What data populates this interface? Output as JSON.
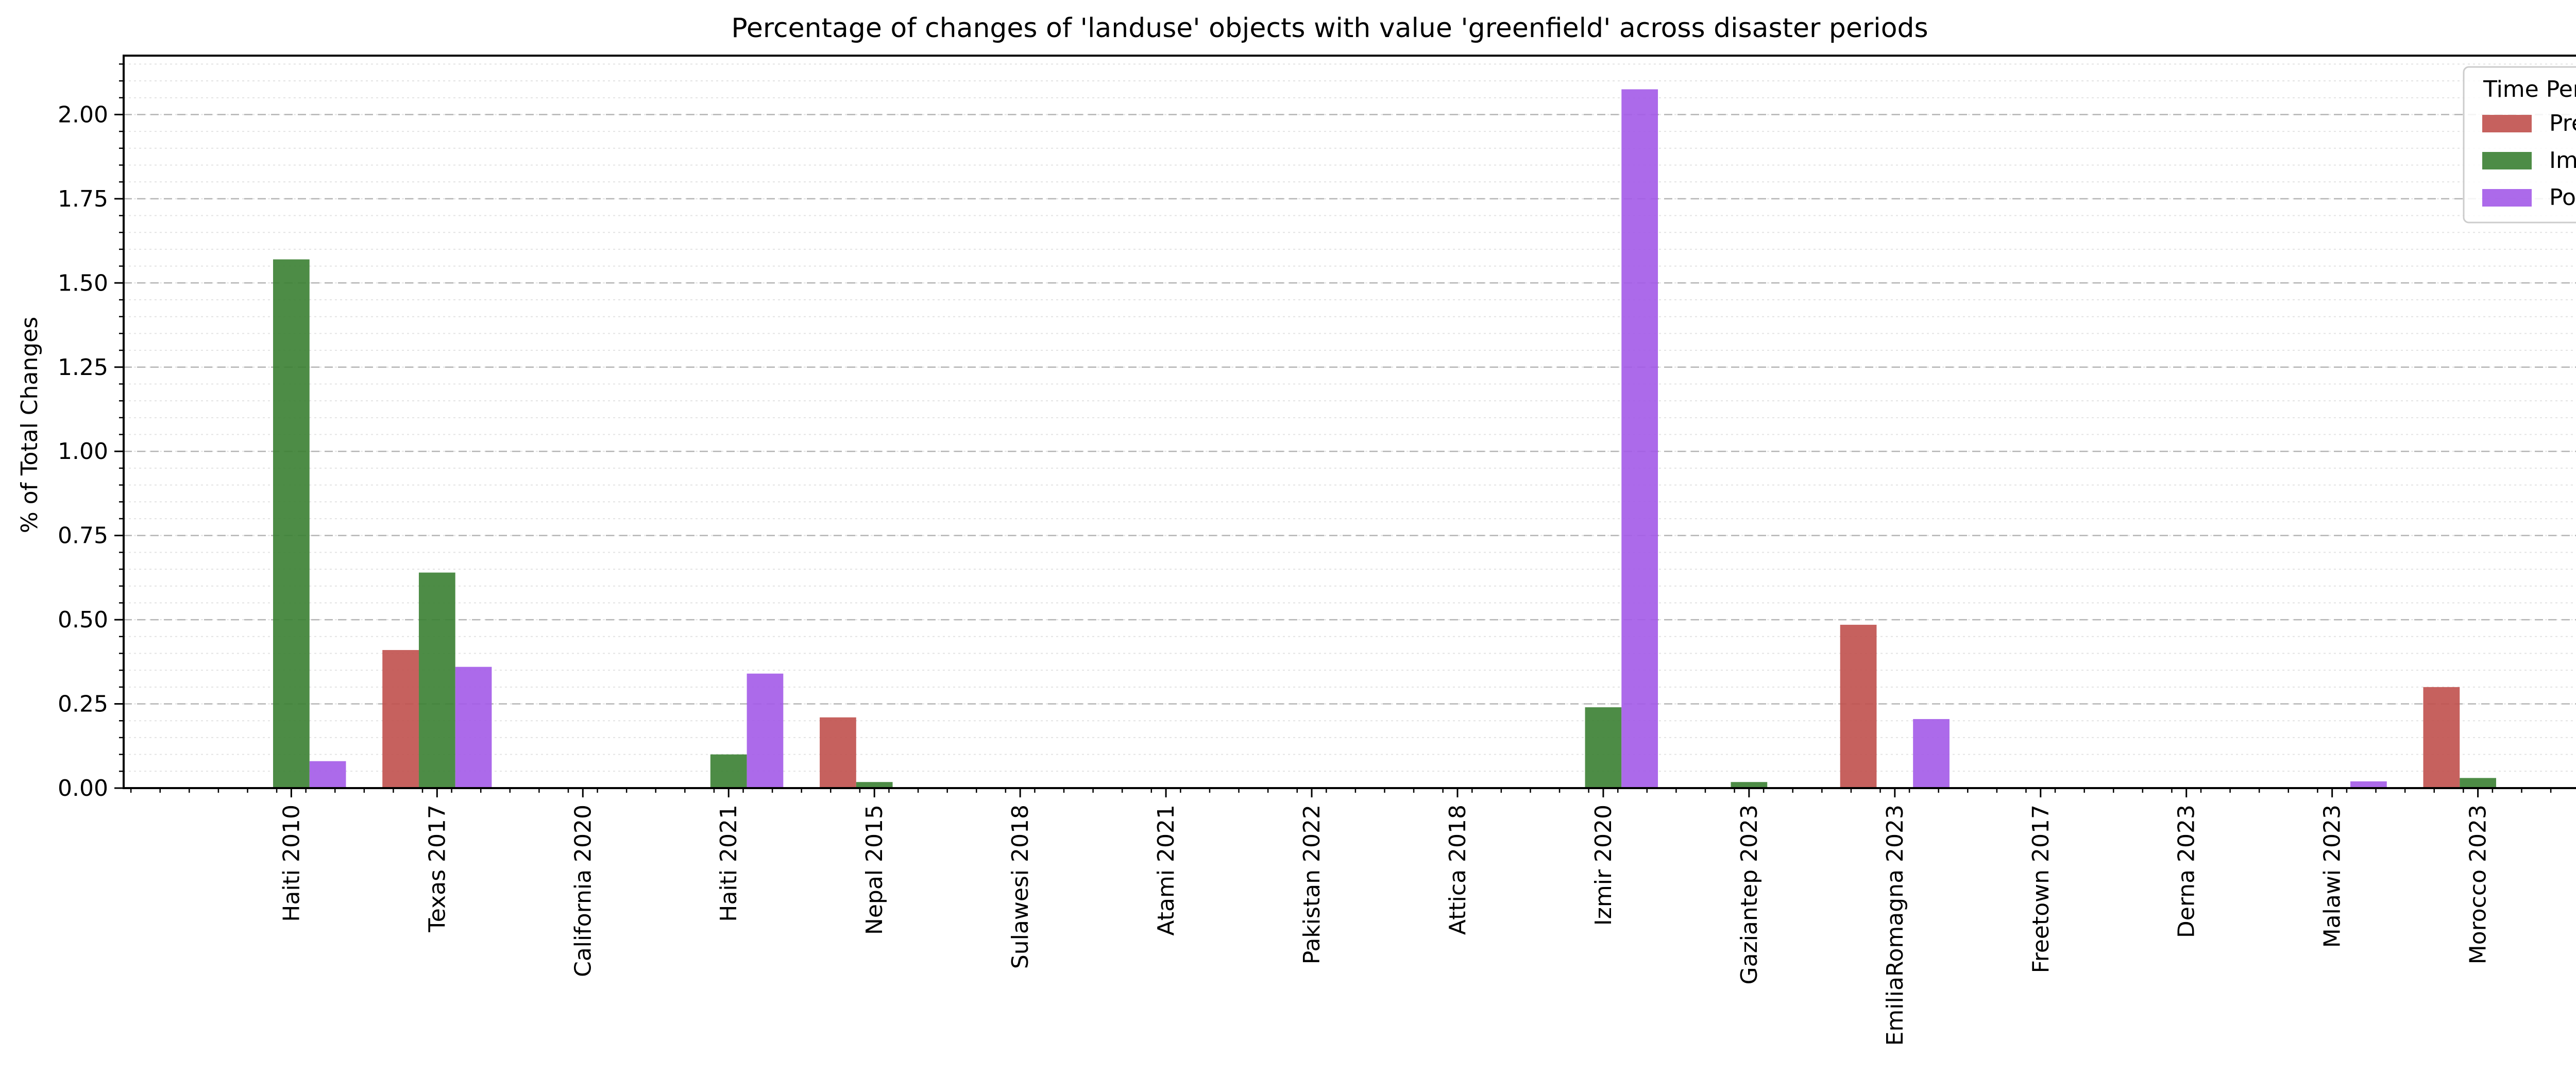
{
  "chart_data": {
    "type": "bar",
    "title": "Percentage of changes of 'landuse' objects with value 'greenfield' across disaster periods",
    "xlabel": "",
    "ylabel": "% of Total Changes",
    "ylim": [
      0,
      2.175
    ],
    "yticks": [
      "0.00",
      "0.25",
      "0.50",
      "0.75",
      "1.00",
      "1.25",
      "1.50",
      "1.75",
      "2.00"
    ],
    "ytick_values": [
      0,
      0.25,
      0.5,
      0.75,
      1.0,
      1.25,
      1.5,
      1.75,
      2.0
    ],
    "grid": true,
    "legend_title": "Time Period",
    "legend_position": "top-right",
    "categories": [
      "Haiti 2010",
      "Texas 2017",
      "California 2020",
      "Haiti 2021",
      "Nepal 2015",
      "Sulawesi 2018",
      "Atami 2021",
      "Pakistan 2022",
      "Attica 2018",
      "Izmir 2020",
      "Gaziantep 2023",
      "EmiliaRomagna 2023",
      "Freetown 2017",
      "Derna 2023",
      "Malawi 2023",
      "Morocco 2023"
    ],
    "series": [
      {
        "name": "Pre",
        "color": "#c0504d",
        "values": [
          0,
          0.41,
          0,
          0,
          0.21,
          0,
          0,
          0,
          0,
          0,
          0,
          0.485,
          0,
          0,
          0,
          0.3
        ]
      },
      {
        "name": "Imm",
        "color": "#3a7f32",
        "values": [
          1.57,
          0.64,
          0,
          0.1,
          0.018,
          0,
          0,
          0,
          0,
          0.24,
          0.018,
          0,
          0,
          0,
          0,
          0.03
        ]
      },
      {
        "name": "Post",
        "color": "#a35ae8",
        "values": [
          0.08,
          0.36,
          0,
          0.34,
          0,
          0,
          0,
          0,
          0,
          2.075,
          0,
          0.205,
          0,
          0,
          0.02,
          0
        ]
      }
    ]
  }
}
